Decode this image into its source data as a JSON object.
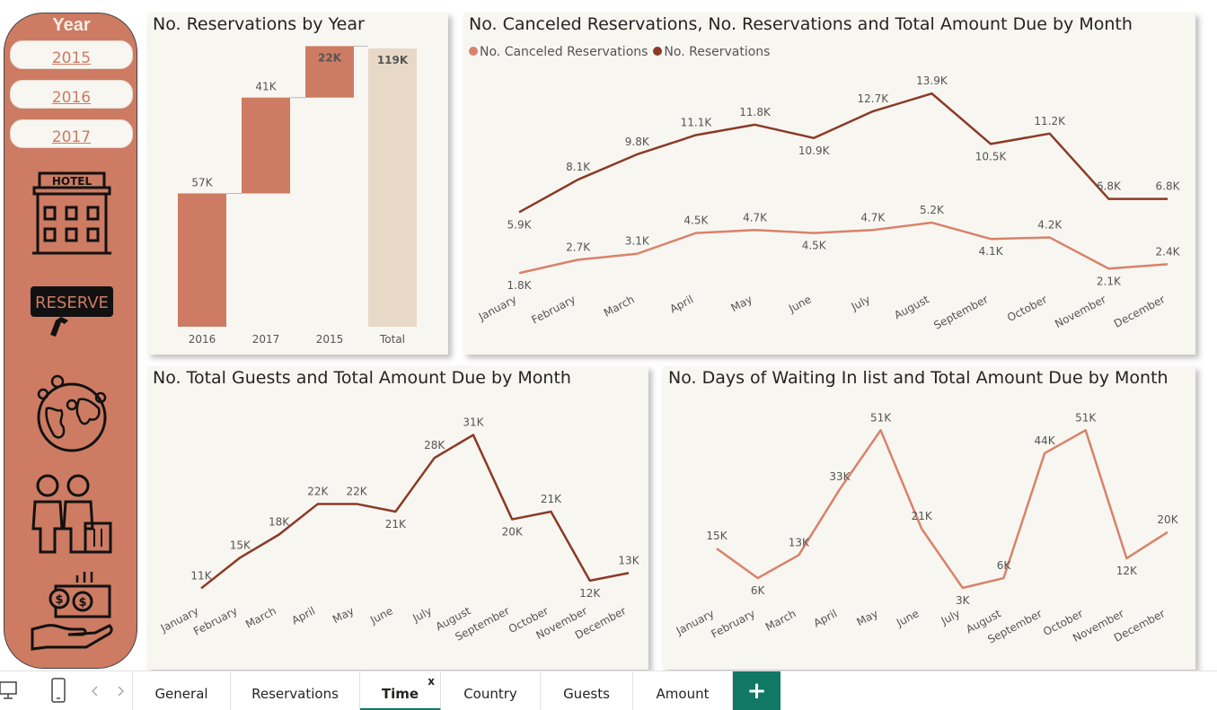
{
  "sidebar": {
    "title": "Year",
    "years": [
      "2015",
      "2016",
      "2017"
    ],
    "icons": [
      {
        "name": "hotel-icon",
        "label": "HOTEL"
      },
      {
        "name": "reserve-icon",
        "label": "RESERVE"
      },
      {
        "name": "globe-icon"
      },
      {
        "name": "guests-icon"
      },
      {
        "name": "money-icon"
      }
    ],
    "colors": {
      "bg": "#cd7b62",
      "button_bg": "#f8f6f1",
      "text": "#cd7b62"
    }
  },
  "panels": {
    "waterfall": {
      "title": "No. Reservations by Year"
    },
    "canceled": {
      "title": "No. Canceled Reservations, No. Reservations and Total Amount Due by Month",
      "legend": [
        {
          "label": "No. Canceled Reservations",
          "color": "#d9826a"
        },
        {
          "label": "No. Reservations",
          "color": "#8b3a26"
        }
      ]
    },
    "guests": {
      "title": "No. Total Guests and Total Amount Due by Month"
    },
    "waiting": {
      "title": "No. Days of Waiting In list and Total Amount Due by Month"
    }
  },
  "chart_data": [
    {
      "type": "bar",
      "subtype": "waterfall",
      "title": "No. Reservations by Year",
      "categories": [
        "2016",
        "2017",
        "2015",
        "Total"
      ],
      "values": [
        57,
        41,
        22,
        119
      ],
      "labels": [
        "57K",
        "41K",
        "22K",
        "119K"
      ],
      "unit": "K",
      "colors": {
        "increase": "#cd7b62",
        "total": "#e8d9c6"
      }
    },
    {
      "type": "line",
      "title": "No. Canceled Reservations, No. Reservations and Total Amount Due by Month",
      "categories": [
        "January",
        "February",
        "March",
        "April",
        "May",
        "June",
        "July",
        "August",
        "September",
        "October",
        "November",
        "December"
      ],
      "series": [
        {
          "name": "No. Reservations",
          "color": "#8b3a26",
          "values": [
            5.9,
            8.1,
            9.8,
            11.1,
            11.8,
            10.9,
            12.7,
            13.9,
            10.5,
            11.2,
            6.8,
            6.8
          ],
          "labels": [
            "5.9K",
            "8.1K",
            "9.8K",
            "11.1K",
            "11.8K",
            "10.9K",
            "12.7K",
            "13.9K",
            "10.5K",
            "11.2K",
            "6.8K",
            "6.8K"
          ]
        },
        {
          "name": "No. Canceled Reservations",
          "color": "#d9826a",
          "values": [
            1.8,
            2.7,
            3.1,
            4.5,
            4.7,
            4.5,
            4.7,
            5.2,
            4.1,
            4.2,
            2.1,
            2.4
          ],
          "labels": [
            "1.8K",
            "2.7K",
            "3.1K",
            "4.5K",
            "4.7K",
            "4.5K",
            "4.7K",
            "5.2K",
            "4.1K",
            "4.2K",
            "2.1K",
            "2.4K"
          ]
        }
      ],
      "ylim": [
        0,
        15
      ]
    },
    {
      "type": "line",
      "title": "No. Total Guests and Total Amount Due by Month",
      "categories": [
        "January",
        "February",
        "March",
        "April",
        "May",
        "June",
        "July",
        "August",
        "September",
        "October",
        "November",
        "December"
      ],
      "series": [
        {
          "color": "#8b3a26",
          "values": [
            11,
            15,
            18,
            22,
            22,
            21,
            28,
            31,
            20,
            21,
            12,
            13
          ],
          "labels": [
            "11K",
            "15K",
            "18K",
            "22K",
            "22K",
            "21K",
            "28K",
            "31K",
            "20K",
            "21K",
            "12K",
            "13K"
          ]
        }
      ],
      "ylim": [
        10,
        32
      ]
    },
    {
      "type": "line",
      "title": "No. Days of Waiting In list and Total Amount Due by Month",
      "categories": [
        "January",
        "February",
        "March",
        "April",
        "May",
        "June",
        "July",
        "August",
        "September",
        "October",
        "November",
        "December"
      ],
      "series": [
        {
          "color": "#d9826a",
          "values": [
            15,
            6,
            13,
            33,
            51,
            21,
            3,
            6,
            44,
            51,
            12,
            20
          ],
          "labels": [
            "15K",
            "6K",
            "13K",
            "33K",
            "51K",
            "21K",
            "3K",
            "6K",
            "44K",
            "51K",
            "12K",
            "20K"
          ]
        }
      ],
      "ylim": [
        0,
        53
      ]
    }
  ],
  "tabs": {
    "items": [
      "General",
      "Reservations",
      "Time",
      "Country",
      "Guests",
      "Amount"
    ],
    "active": "Time",
    "close_label": "x",
    "add_label": "+",
    "accent": "#117865"
  }
}
